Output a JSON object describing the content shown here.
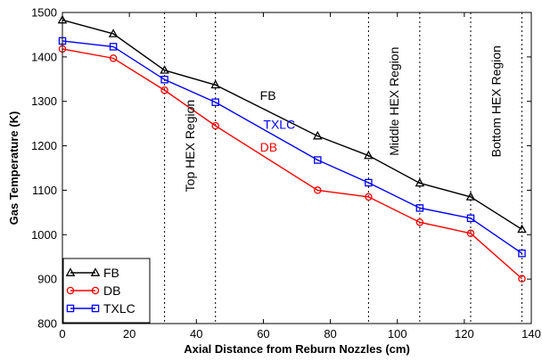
{
  "chart_data": {
    "type": "line",
    "title": "",
    "xlabel": "Axial Distance from Reburn Nozzles (cm)",
    "ylabel": "Gas Temperature (K)",
    "xlim": [
      0,
      140
    ],
    "ylim": [
      800,
      1500
    ],
    "xticks": [
      0,
      20,
      40,
      60,
      80,
      100,
      120,
      140
    ],
    "yticks": [
      800,
      900,
      1000,
      1100,
      1200,
      1300,
      1400,
      1500
    ],
    "grid": false,
    "legend_position": "bottom-left",
    "x": [
      0,
      15.2,
      30.5,
      45.7,
      76.2,
      91.4,
      106.7,
      121.9,
      137.2
    ],
    "series": [
      {
        "name": "FB",
        "color": "#000000",
        "marker": "triangle",
        "values": [
          1483,
          1452,
          1370,
          1337,
          1222,
          1178,
          1116,
          1085,
          1012
        ]
      },
      {
        "name": "DB",
        "color": "#ff0000",
        "marker": "circle",
        "values": [
          1418,
          1397,
          1325,
          1245,
          1100,
          1085,
          1028,
          1003,
          901
        ]
      },
      {
        "name": "TXLC",
        "color": "#0000ff",
        "marker": "square",
        "values": [
          1436,
          1423,
          1349,
          1298,
          1168,
          1117,
          1060,
          1037,
          958
        ]
      }
    ],
    "region_lines_x": [
      30.5,
      45.7,
      91.4,
      106.7,
      121.9,
      137.2
    ],
    "region_labels": [
      {
        "text": "Top HEX Region",
        "x": 38,
        "y": 1200
      },
      {
        "text": "Middle HEX Region",
        "x": 99,
        "y": 1300
      },
      {
        "text": "Bottom HEX Region",
        "x": 129.5,
        "y": 1300
      }
    ],
    "series_annotations": [
      {
        "text": "FB",
        "x": 59,
        "y": 1303,
        "color": "#000000"
      },
      {
        "text": "TXLC",
        "x": 60,
        "y": 1238,
        "color": "#0000ff"
      },
      {
        "text": "DB",
        "x": 59,
        "y": 1187,
        "color": "#ff0000"
      }
    ]
  }
}
